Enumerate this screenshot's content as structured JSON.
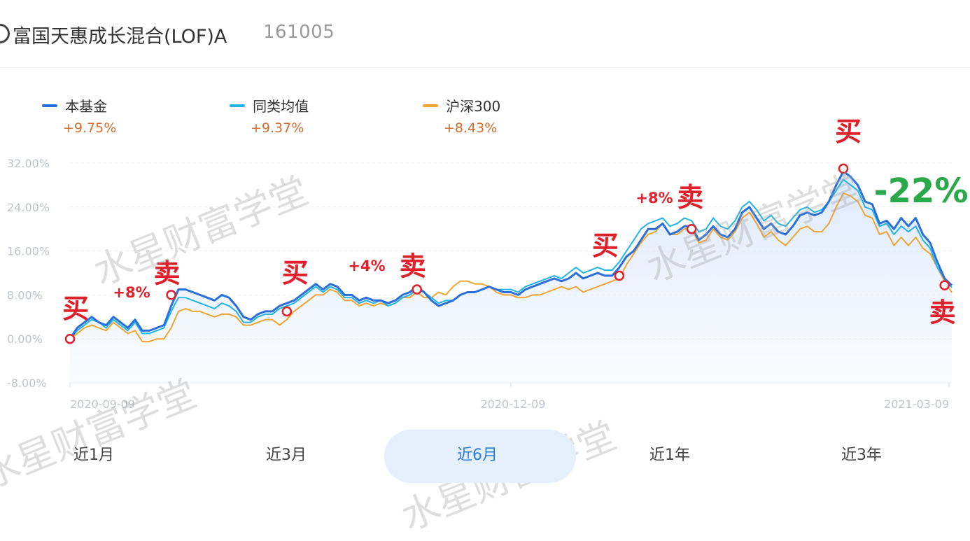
{
  "header": {
    "fund_name": "富国天惠成长混合(LOF)A",
    "fund_code": "161005"
  },
  "legend": [
    {
      "name": "本基金",
      "value": "+9.75%",
      "color": "#2a6fdb"
    },
    {
      "name": "同类均值",
      "value": "+9.37%",
      "color": "#1fb5e6"
    },
    {
      "name": "沪深300",
      "value": "+8.43%",
      "color": "#f0a431"
    }
  ],
  "watermark_text": "水星财富学堂",
  "annotations": {
    "buy": "买",
    "sell": "卖",
    "gains": [
      "+8%",
      "+4%",
      "+8%"
    ],
    "drop": "-22%"
  },
  "tabs": [
    {
      "label": "近1月",
      "active": false
    },
    {
      "label": "近3月",
      "active": false
    },
    {
      "label": "近6月",
      "active": true
    },
    {
      "label": "近1年",
      "active": false
    },
    {
      "label": "近3年",
      "active": false
    }
  ],
  "chart_data": {
    "type": "line",
    "x_tick_labels": [
      "2020-09-09",
      "2020-12-09",
      "2021-03-09"
    ],
    "y_tick_labels": [
      "32.00%",
      "24.00%",
      "16.00%",
      "8.00%",
      "0.00%",
      "-8.00%"
    ],
    "ylim": [
      -8,
      32
    ],
    "grid": true,
    "series": [
      {
        "name": "本基金",
        "color": "#2a6fdb",
        "values": [
          0,
          2,
          3,
          4,
          3,
          2.5,
          4,
          3,
          2,
          3.5,
          1.5,
          1.5,
          2,
          2.5,
          6,
          9,
          9,
          8.5,
          8,
          7.5,
          7,
          8,
          7.5,
          6,
          4,
          3.5,
          4.5,
          5,
          5,
          6,
          6.5,
          7,
          8,
          9,
          10,
          9,
          10,
          9.5,
          8,
          8,
          7,
          7.5,
          7,
          7,
          6.5,
          7,
          8,
          8.5,
          9.5,
          8.5,
          7,
          6,
          6.5,
          7,
          8,
          8.5,
          8.5,
          9,
          9.5,
          9,
          8.5,
          8.5,
          8,
          9,
          9.5,
          10,
          10.5,
          11,
          10.5,
          11,
          12,
          11,
          11.5,
          12,
          11.5,
          11.5,
          13,
          15,
          16,
          18,
          20,
          20,
          21,
          19,
          19.5,
          20.5,
          20.5,
          18,
          19,
          20.5,
          19,
          18.5,
          20,
          23,
          24,
          22,
          20,
          21,
          19.5,
          19,
          20.5,
          22.5,
          23,
          22.5,
          23,
          25,
          28,
          30.5,
          29.5,
          28,
          25,
          24.5,
          21,
          21.5,
          20,
          22,
          20.5,
          22,
          19,
          17.5,
          14,
          11,
          9.75
        ]
      },
      {
        "name": "同类均值",
        "color": "#1fb5e6",
        "values": [
          0,
          1.5,
          2.5,
          3.5,
          3,
          2,
          3.5,
          2.5,
          1.5,
          3,
          1,
          1,
          1.5,
          2,
          5,
          7.5,
          7.5,
          7,
          6.5,
          6,
          5.5,
          6.5,
          6,
          5,
          3,
          3,
          4,
          4.5,
          4.5,
          5.5,
          6,
          6.5,
          7.5,
          8.5,
          9.5,
          8.5,
          9.5,
          9,
          7.5,
          7.5,
          6.5,
          7,
          6.5,
          7,
          6,
          6.5,
          7.5,
          8,
          9,
          8.5,
          7.5,
          6.5,
          7,
          7,
          8,
          8.5,
          8.5,
          9,
          9.5,
          9,
          9,
          9,
          8.5,
          9.5,
          10,
          10.5,
          11,
          11.5,
          11,
          12,
          13,
          12,
          12.5,
          13,
          12.5,
          12.5,
          14,
          16,
          18,
          20,
          21,
          21.5,
          22,
          20.5,
          21,
          22,
          21.5,
          19.5,
          20,
          22,
          20.5,
          20,
          21.5,
          24,
          25,
          23.5,
          21.5,
          22.5,
          21,
          20.5,
          22,
          23.5,
          24,
          23,
          23.5,
          25,
          27,
          29,
          28,
          27,
          24,
          23.5,
          20.5,
          21,
          19,
          20.5,
          19.5,
          20.5,
          18,
          16.5,
          13,
          11,
          9.37
        ]
      },
      {
        "name": "沪深300",
        "color": "#f0a431",
        "values": [
          0,
          1,
          2,
          2.5,
          2,
          1.5,
          3,
          2,
          1,
          1.5,
          -0.5,
          -0.5,
          0,
          0,
          2,
          5,
          5.5,
          5,
          5,
          4.5,
          4,
          4.5,
          4.5,
          4,
          2.5,
          2.5,
          3,
          3.5,
          3.5,
          2.5,
          3.5,
          5,
          6,
          7,
          8,
          8,
          9,
          8.5,
          7,
          7,
          6,
          6.5,
          6,
          6.5,
          6,
          6.5,
          7.5,
          7.5,
          8.5,
          7.5,
          7.5,
          8.5,
          8,
          9.5,
          10.5,
          10.5,
          10,
          10,
          9.5,
          8.5,
          8,
          8,
          7.5,
          7.5,
          8,
          8,
          8.5,
          9,
          9.5,
          9,
          9.5,
          8.5,
          9,
          9.5,
          10,
          10.5,
          11,
          13.5,
          15.5,
          17.5,
          19,
          19.5,
          21,
          19,
          19,
          20,
          20,
          17.5,
          18,
          20,
          18.5,
          18,
          19.5,
          22,
          23,
          21,
          18.5,
          19.5,
          18,
          17,
          18.5,
          20,
          20.5,
          19.5,
          19.5,
          21,
          24,
          26.5,
          26,
          25,
          22.5,
          22,
          19,
          19.5,
          17,
          18.5,
          17,
          18.5,
          16.5,
          15.5,
          13,
          10.5,
          8.43
        ]
      }
    ],
    "markers": [
      {
        "label": "买",
        "index": 0,
        "value": 0
      },
      {
        "label": "卖",
        "index": 14,
        "value": 8
      },
      {
        "label": "买",
        "index": 30,
        "value": 5
      },
      {
        "label": "卖",
        "index": 48,
        "value": 9
      },
      {
        "label": "买",
        "index": 76,
        "value": 11.5
      },
      {
        "label": "卖",
        "index": 86,
        "value": 20
      },
      {
        "label": "买",
        "index": 107,
        "value": 31
      },
      {
        "label": "卖",
        "index": 121,
        "value": 9.75
      }
    ]
  }
}
